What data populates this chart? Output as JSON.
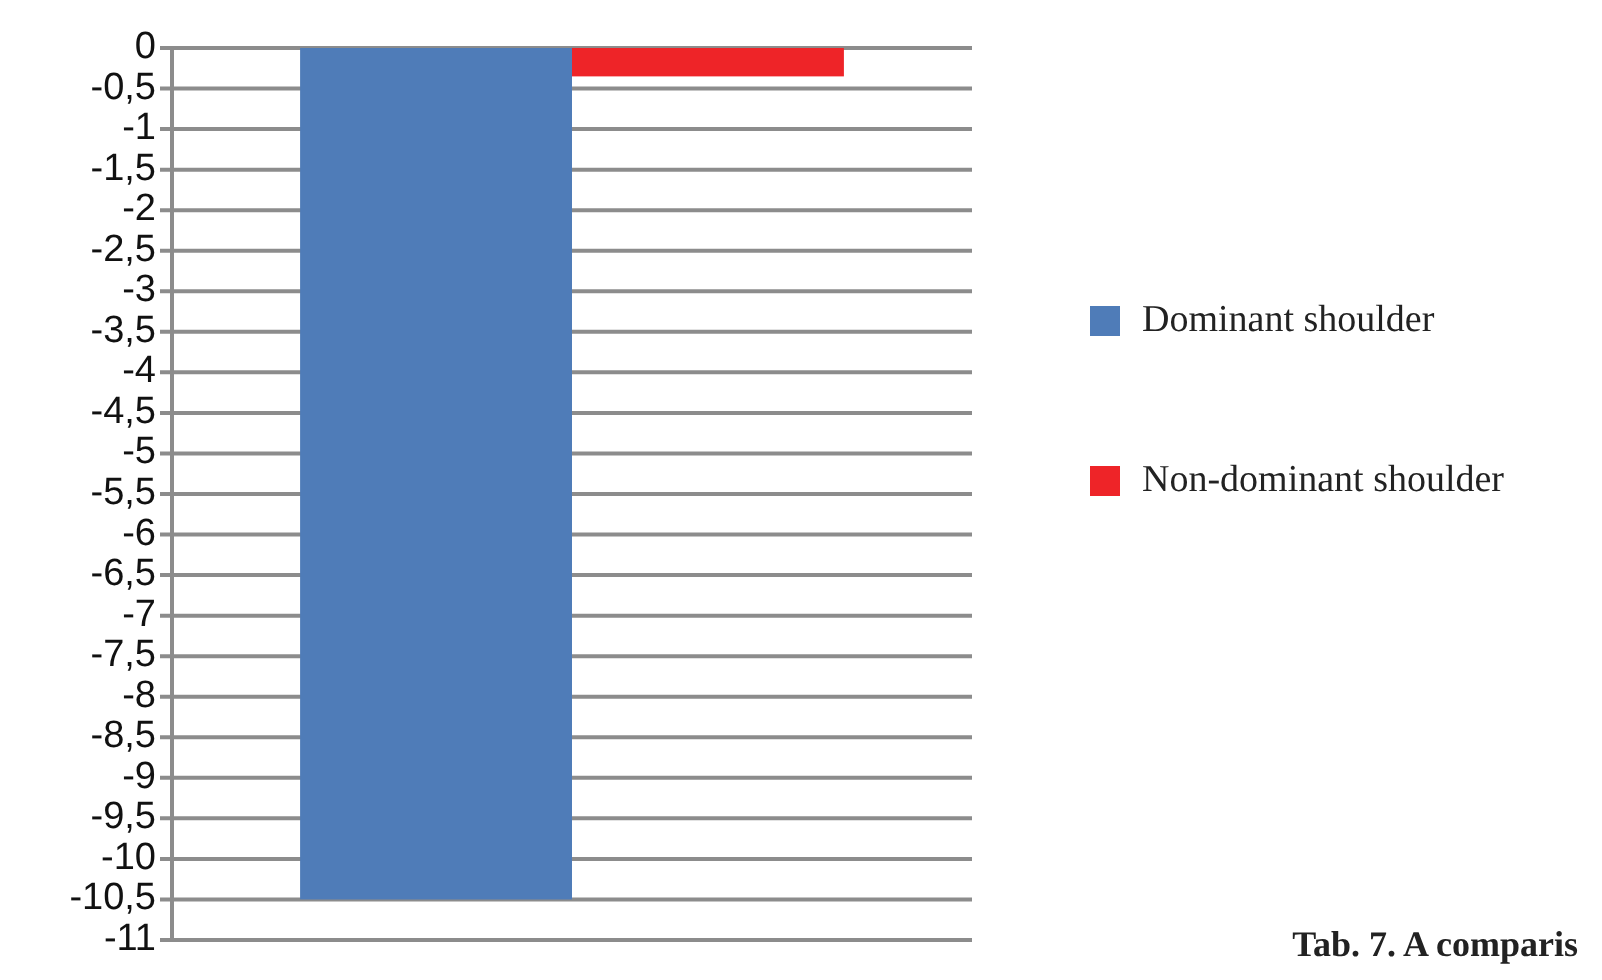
{
  "chart_data": {
    "type": "bar",
    "categories": [
      null
    ],
    "series": [
      {
        "name": "Dominant shoulder",
        "color": "#4f7cb8",
        "values": [
          -10.5
        ]
      },
      {
        "name": "Non-dominant shoulder",
        "color": "#ee2428",
        "values": [
          -0.35
        ]
      }
    ],
    "ylim": [
      -11,
      0
    ],
    "yticks": [
      0,
      {
        "value": -0.5,
        "label": "-0,5"
      },
      -1,
      {
        "value": -1.5,
        "label": "-1,5"
      },
      -2,
      {
        "value": -2.5,
        "label": "-2,5"
      },
      -3,
      {
        "value": -3.5,
        "label": "-3,5"
      },
      -4,
      {
        "value": -4.5,
        "label": "-4,5"
      },
      -5,
      {
        "value": -5.5,
        "label": "-5,5"
      },
      -6,
      {
        "value": -6.5,
        "label": "-6,5"
      },
      -7,
      {
        "value": -7.5,
        "label": "-7,5"
      },
      -8,
      {
        "value": -8.5,
        "label": "-8,5"
      },
      -9,
      {
        "value": -9.5,
        "label": "-9,5"
      },
      -10,
      {
        "value": -10.5,
        "label": "-10,5"
      },
      -11
    ],
    "grid": "y",
    "legend": "right",
    "tick_labels": "y",
    "annotations": [
      "Tab. 7. A comparis"
    ]
  }
}
